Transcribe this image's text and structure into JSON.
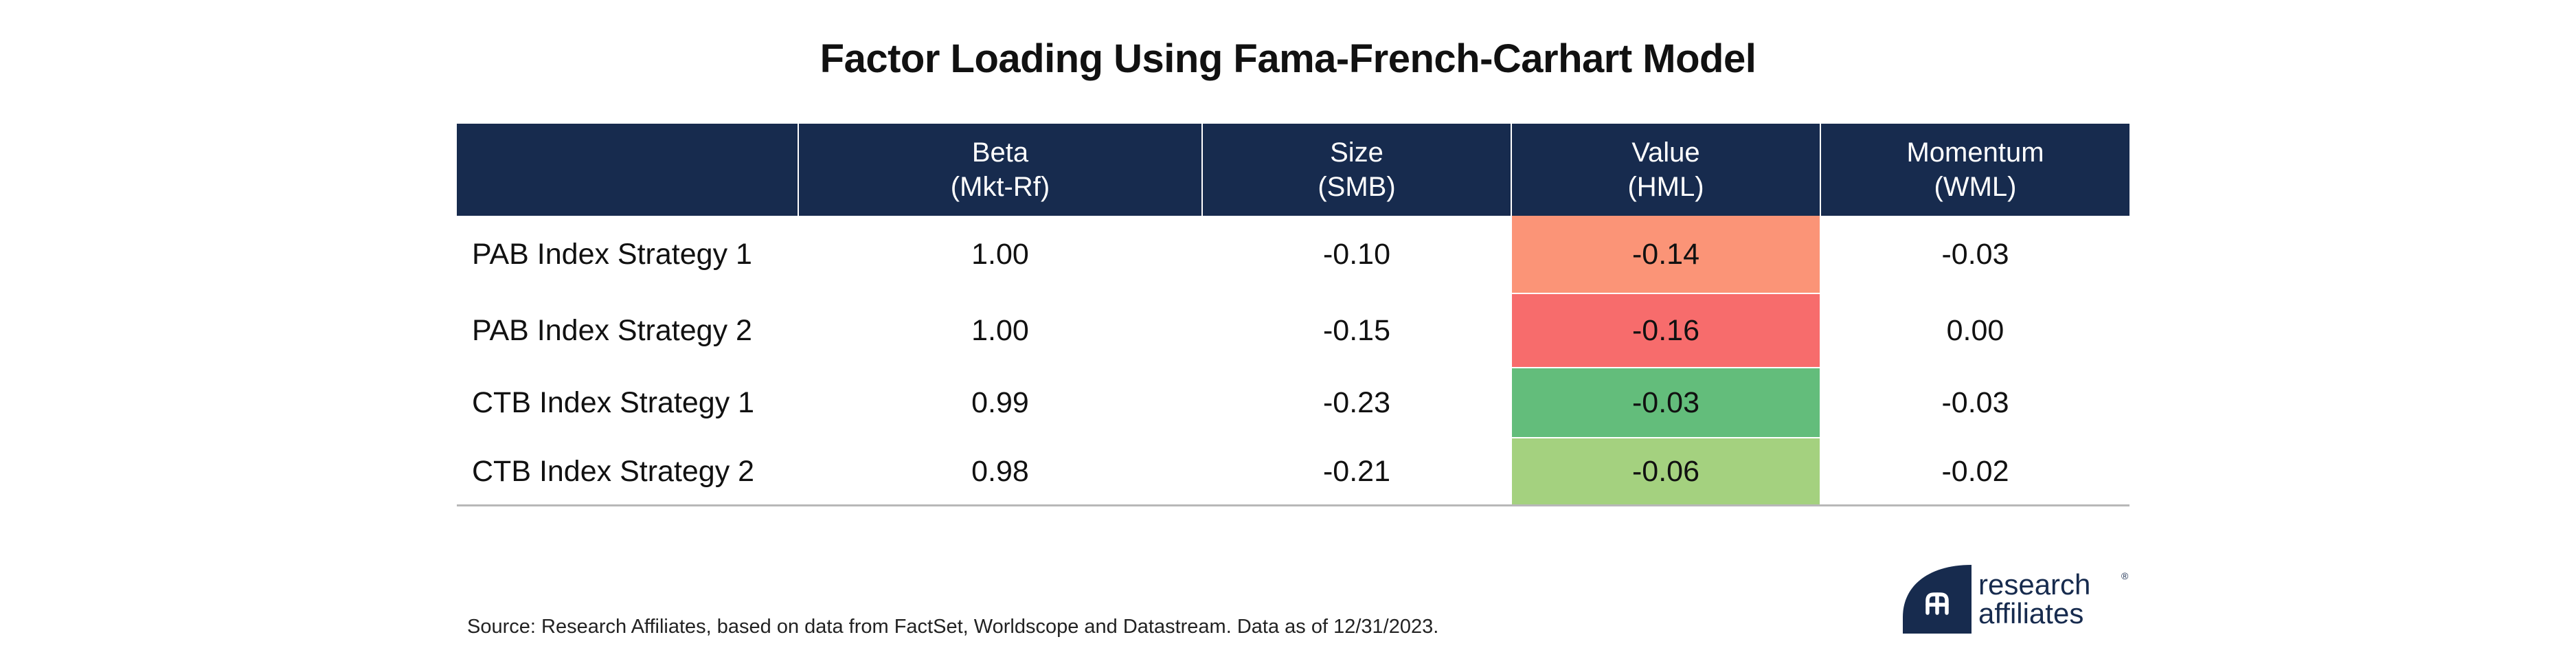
{
  "title": "Factor Loading Using Fama-French-Carhart Model",
  "colors": {
    "header_bg": "#172b4e",
    "header_text": "#ffffff",
    "light_red": "#fb9477",
    "red": "#f76c6c",
    "green": "#63bd7b",
    "light_green": "#a4d17f"
  },
  "table": {
    "columns": [
      {
        "line1": "",
        "line2": ""
      },
      {
        "line1": "Beta",
        "line2": "(Mkt-Rf)"
      },
      {
        "line1": "Size",
        "line2": "(SMB)"
      },
      {
        "line1": "Value",
        "line2": "(HML)"
      },
      {
        "line1": "Momentum",
        "line2": "(WML)"
      }
    ],
    "rows": [
      {
        "label": "PAB Index Strategy 1",
        "values": [
          "1.00",
          "-0.10",
          "-0.14",
          "-0.03"
        ],
        "value_color": "light_red"
      },
      {
        "label": "PAB Index Strategy 2",
        "values": [
          "1.00",
          "-0.15",
          "-0.16",
          "0.00"
        ],
        "value_color": "red"
      },
      {
        "label": "CTB Index Strategy 1",
        "values": [
          "0.99",
          "-0.23",
          "-0.03",
          "-0.03"
        ],
        "value_color": "green"
      },
      {
        "label": "CTB Index Strategy 2",
        "values": [
          "0.98",
          "-0.21",
          "-0.06",
          "-0.02"
        ],
        "value_color": "light_green"
      }
    ]
  },
  "chart_data": {
    "type": "table",
    "title": "Factor Loading Using Fama-French-Carhart Model",
    "columns": [
      "Beta (Mkt-Rf)",
      "Size (SMB)",
      "Value (HML)",
      "Momentum (WML)"
    ],
    "rows": [
      "PAB Index Strategy 1",
      "PAB Index Strategy 2",
      "CTB Index Strategy 1",
      "CTB Index Strategy 2"
    ],
    "values": [
      [
        1.0,
        -0.1,
        -0.14,
        -0.03
      ],
      [
        1.0,
        -0.15,
        -0.16,
        0.0
      ],
      [
        0.99,
        -0.23,
        -0.03,
        -0.03
      ],
      [
        0.98,
        -0.21,
        -0.06,
        -0.02
      ]
    ],
    "highlighted_column": "Value (HML)"
  },
  "source": "Source: Research Affiliates, based on data from FactSet, Worldscope and Datastream. Data as of 12/31/2023.",
  "logo": {
    "line1": "research",
    "line2": "affiliates",
    "reg": "®",
    "icon": "research-affiliates-logo-icon"
  }
}
